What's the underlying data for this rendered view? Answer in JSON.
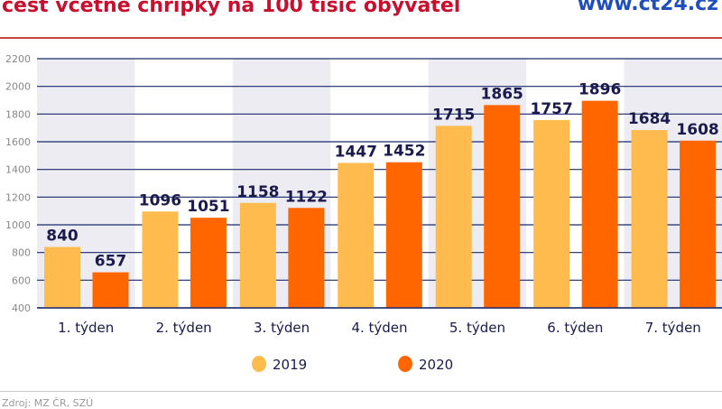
{
  "header": {
    "title": "cest včetně chřipky na 100 tisíc obyvatel",
    "url": "www.ct24.cz"
  },
  "footer": {
    "source": "Zdroj: MZ ČR, SZÚ"
  },
  "colors": {
    "2019": "#ffbb4d",
    "2020": "#ff6600",
    "band": "#ececf2",
    "grid": "#1a2a6c",
    "label": "#1a1a4e"
  },
  "chart_data": {
    "type": "bar",
    "categories": [
      "1. týden",
      "2. týden",
      "3. týden",
      "4. týden",
      "5. týden",
      "6. týden",
      "7. týden"
    ],
    "series": [
      {
        "name": "2019",
        "values": [
          840,
          1096,
          1158,
          1447,
          1715,
          1757,
          1684
        ]
      },
      {
        "name": "2020",
        "values": [
          657,
          1051,
          1122,
          1452,
          1865,
          1896,
          1608
        ]
      }
    ],
    "yticks": [
      400,
      600,
      800,
      1000,
      1200,
      1400,
      1600,
      1800,
      2000,
      2200
    ],
    "ylim": [
      400,
      2200
    ],
    "grid": true,
    "legend": "bottom-center"
  }
}
